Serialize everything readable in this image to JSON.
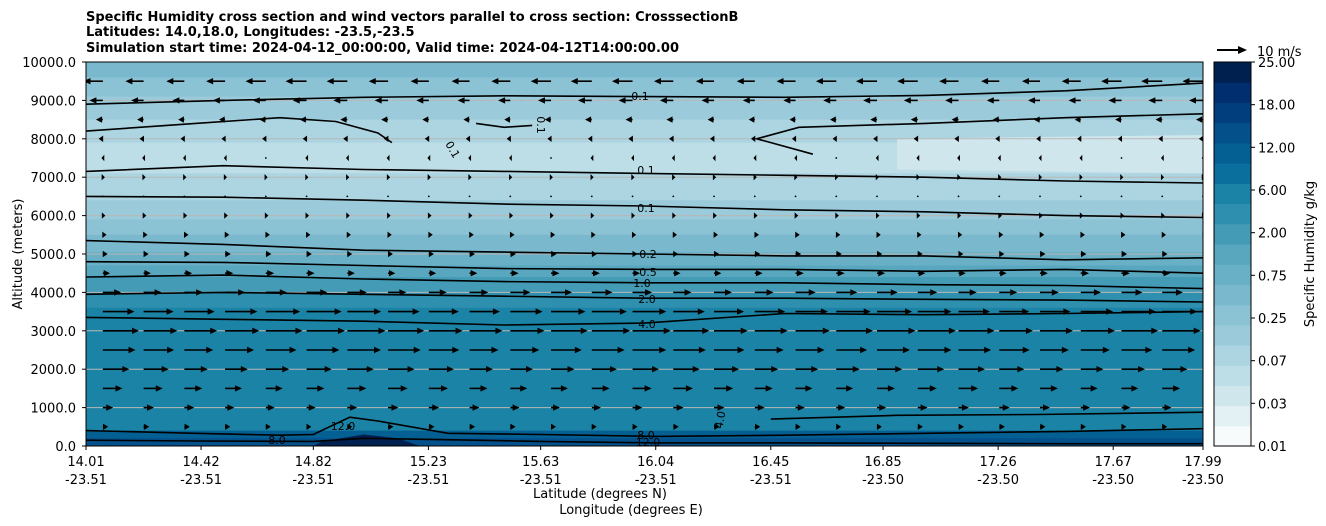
{
  "chart_data": {
    "type": "contour",
    "title_lines": [
      "Specific Humidity cross section and wind vectors parallel to cross section: CrosssectionB",
      "Latitudes: 14.0,18.0, Longitudes: -23.5,-23.5",
      "Simulation start time: 2024-04-12_00:00:00, Valid time: 2024-04-12T14:00:00.00"
    ],
    "xlabel_lat": "Latitude (degrees N)",
    "xlabel_lon": "Longitude (degrees E)",
    "ylabel": "Altitude (meters)",
    "ylim": [
      0,
      10000
    ],
    "yticks": [
      0,
      1000,
      2000,
      3000,
      4000,
      5000,
      6000,
      7000,
      8000,
      9000,
      10000
    ],
    "ytick_labels": [
      "0.0",
      "1000.0",
      "2000.0",
      "3000.0",
      "4000.0",
      "5000.0",
      "6000.0",
      "7000.0",
      "8000.0",
      "9000.0",
      "10000.0"
    ],
    "xticks_lat": [
      "14.01",
      "14.42",
      "14.82",
      "15.23",
      "15.63",
      "16.04",
      "16.45",
      "16.85",
      "17.26",
      "17.67",
      "17.99"
    ],
    "xticks_lon": [
      "-23.51",
      "-23.51",
      "-23.51",
      "-23.51",
      "-23.51",
      "-23.51",
      "-23.51",
      "-23.50",
      "-23.50",
      "-23.50",
      "-23.50"
    ],
    "colorbar": {
      "label": "Specific Humidity g/kg",
      "levels": [
        0.01,
        0.02,
        0.03,
        0.05,
        0.07,
        0.1,
        0.25,
        0.5,
        0.75,
        1.0,
        2.0,
        4.0,
        6.0,
        8.0,
        12.0,
        15.0,
        18.0,
        21.0,
        25.0
      ],
      "tick_labels": [
        "0.01",
        "0.03",
        "0.07",
        "0.25",
        "0.75",
        "2.00",
        "6.00",
        "12.00",
        "18.00",
        "25.00"
      ],
      "colors": [
        "#f7fbfc",
        "#e3f0f4",
        "#d0e6ed",
        "#bddde7",
        "#acd4e1",
        "#9bcbdb",
        "#8bc2d4",
        "#7ab9cd",
        "#69b0c6",
        "#58a7bf",
        "#439bb6",
        "#2f8fae",
        "#1b83a5",
        "#0a6f9c",
        "#045f93",
        "#03508b",
        "#013e7d",
        "#012e6e",
        "#00204f"
      ]
    },
    "humidity_bands": [
      {
        "z": 9600,
        "q": 0.5
      },
      {
        "z": 9100,
        "q": 0.25
      },
      {
        "z": 8500,
        "q": 0.1
      },
      {
        "z": 7900,
        "q": 0.07
      },
      {
        "z": 7100,
        "q": 0.05
      },
      {
        "z": 6400,
        "q": 0.07
      },
      {
        "z": 5900,
        "q": 0.1
      },
      {
        "z": 5500,
        "q": 0.25
      },
      {
        "z": 5050,
        "q": 0.5
      },
      {
        "z": 4700,
        "q": 0.75
      },
      {
        "z": 4400,
        "q": 1.0
      },
      {
        "z": 4000,
        "q": 2.0
      },
      {
        "z": 3600,
        "q": 4.0
      },
      {
        "z": 400,
        "q": 6.0
      },
      {
        "z": 200,
        "q": 12.0
      },
      {
        "z": 0,
        "q": 15.0
      }
    ],
    "contours": [
      {
        "level": "0.1",
        "points": [
          [
            14.01,
            8900
          ],
          [
            14.5,
            9000
          ],
          [
            15.0,
            9080
          ],
          [
            15.5,
            9120
          ],
          [
            16.0,
            9100
          ],
          [
            16.5,
            9080
          ],
          [
            17.0,
            9130
          ],
          [
            17.5,
            9250
          ],
          [
            17.99,
            9450
          ]
        ]
      },
      {
        "level": "0.1",
        "points": [
          [
            14.01,
            8200
          ],
          [
            14.4,
            8400
          ],
          [
            14.7,
            8550
          ],
          [
            14.9,
            8450
          ],
          [
            15.05,
            8150
          ],
          [
            15.1,
            7900
          ]
        ]
      },
      {
        "level": "0.1",
        "points": [
          [
            15.4,
            8400
          ],
          [
            15.5,
            8300
          ],
          [
            15.6,
            8350
          ]
        ]
      },
      {
        "level": "0.1",
        "points": [
          [
            16.6,
            7600
          ],
          [
            16.4,
            8000
          ],
          [
            16.55,
            8300
          ],
          [
            17.0,
            8400
          ],
          [
            17.5,
            8550
          ],
          [
            17.99,
            8650
          ]
        ]
      },
      {
        "level": "0.1",
        "points": [
          [
            14.01,
            7150
          ],
          [
            14.5,
            7300
          ],
          [
            15.0,
            7200
          ],
          [
            15.5,
            7150
          ],
          [
            16.0,
            7100
          ],
          [
            16.5,
            7050
          ],
          [
            17.0,
            7000
          ],
          [
            17.5,
            6900
          ],
          [
            17.99,
            6850
          ]
        ]
      },
      {
        "level": "0.1",
        "points": [
          [
            14.01,
            6500
          ],
          [
            14.5,
            6480
          ],
          [
            15.0,
            6400
          ],
          [
            15.5,
            6300
          ],
          [
            16.0,
            6250
          ],
          [
            16.5,
            6150
          ],
          [
            17.0,
            6100
          ],
          [
            17.5,
            6000
          ],
          [
            17.99,
            5950
          ]
        ]
      },
      {
        "level": "0.2",
        "points": [
          [
            14.01,
            5350
          ],
          [
            14.5,
            5250
          ],
          [
            15.0,
            5100
          ],
          [
            15.5,
            5050
          ],
          [
            16.0,
            5000
          ],
          [
            16.5,
            4950
          ],
          [
            17.0,
            4950
          ],
          [
            17.5,
            4850
          ],
          [
            17.99,
            4900
          ]
        ]
      },
      {
        "level": "0.5",
        "points": [
          [
            14.01,
            4800
          ],
          [
            14.5,
            4780
          ],
          [
            15.0,
            4700
          ],
          [
            15.5,
            4620
          ],
          [
            16.0,
            4600
          ],
          [
            16.5,
            4600
          ],
          [
            17.0,
            4550
          ],
          [
            17.5,
            4600
          ],
          [
            17.99,
            4500
          ]
        ]
      },
      {
        "level": "1.0",
        "points": [
          [
            14.01,
            4400
          ],
          [
            14.5,
            4450
          ],
          [
            15.0,
            4350
          ],
          [
            15.5,
            4280
          ],
          [
            16.0,
            4250
          ],
          [
            16.5,
            4250
          ],
          [
            17.0,
            4200
          ],
          [
            17.5,
            4180
          ],
          [
            17.99,
            4100
          ]
        ]
      },
      {
        "level": "2.0",
        "points": [
          [
            14.01,
            3950
          ],
          [
            14.5,
            4000
          ],
          [
            15.0,
            3950
          ],
          [
            15.5,
            3900
          ],
          [
            16.0,
            3850
          ],
          [
            16.5,
            3850
          ],
          [
            17.0,
            3820
          ],
          [
            17.5,
            3800
          ],
          [
            17.99,
            3750
          ]
        ]
      },
      {
        "level": "4.0",
        "points": [
          [
            14.01,
            3350
          ],
          [
            14.5,
            3300
          ],
          [
            15.0,
            3250
          ],
          [
            15.5,
            3150
          ],
          [
            16.0,
            3200
          ],
          [
            16.5,
            3450
          ],
          [
            17.0,
            3420
          ],
          [
            17.5,
            3450
          ],
          [
            17.99,
            3500
          ]
        ]
      },
      {
        "level": "4.0",
        "points": [
          [
            16.45,
            700
          ],
          [
            16.9,
            800
          ],
          [
            17.4,
            820
          ],
          [
            17.99,
            880
          ]
        ]
      },
      {
        "level": "8.0",
        "points": [
          [
            14.01,
            400
          ],
          [
            14.4,
            330
          ],
          [
            14.7,
            280
          ],
          [
            14.82,
            300
          ],
          [
            14.95,
            750
          ],
          [
            15.05,
            650
          ],
          [
            15.3,
            330
          ],
          [
            15.63,
            300
          ],
          [
            16.04,
            250
          ],
          [
            16.5,
            280
          ],
          [
            17.0,
            330
          ],
          [
            17.5,
            380
          ],
          [
            17.99,
            450
          ]
        ]
      },
      {
        "level": "12.0",
        "points": [
          [
            14.01,
            150
          ],
          [
            14.4,
            130
          ],
          [
            14.82,
            120
          ],
          [
            15.0,
            200
          ],
          [
            15.63,
            120
          ],
          [
            16.04,
            80
          ],
          [
            16.5,
            80
          ],
          [
            17.0,
            70
          ],
          [
            17.5,
            60
          ],
          [
            17.99,
            60
          ]
        ]
      }
    ],
    "contour_labels": [
      "0.1",
      "0.1",
      "0.1",
      "0.1",
      "0.1",
      "0.2",
      "0.5",
      "1.0",
      "2.0",
      "4.0",
      "4.0",
      "8.0",
      "8.0",
      "12.0",
      "12.0"
    ],
    "wind_profile": [
      {
        "z": 9500,
        "u": -3.0
      },
      {
        "z": 9000,
        "u": -2.0
      },
      {
        "z": 8500,
        "u": -1.0
      },
      {
        "z": 8000,
        "u": -0.6
      },
      {
        "z": 7500,
        "u": -0.2
      },
      {
        "z": 7000,
        "u": 0.3
      },
      {
        "z": 6500,
        "u": 0.0
      },
      {
        "z": 6000,
        "u": 0.4
      },
      {
        "z": 5500,
        "u": 0.6
      },
      {
        "z": 5000,
        "u": 0.8
      },
      {
        "z": 4500,
        "u": 1.2
      },
      {
        "z": 4000,
        "u": 3.0
      },
      {
        "z": 3500,
        "u": 5.0
      },
      {
        "z": 3000,
        "u": 5.5
      },
      {
        "z": 2500,
        "u": 4.8
      },
      {
        "z": 2000,
        "u": 3.8
      },
      {
        "z": 1500,
        "u": 2.8
      },
      {
        "z": 1000,
        "u": 1.5
      },
      {
        "z": 500,
        "u": 0.8
      }
    ],
    "quiver_key": "10 m/s"
  }
}
